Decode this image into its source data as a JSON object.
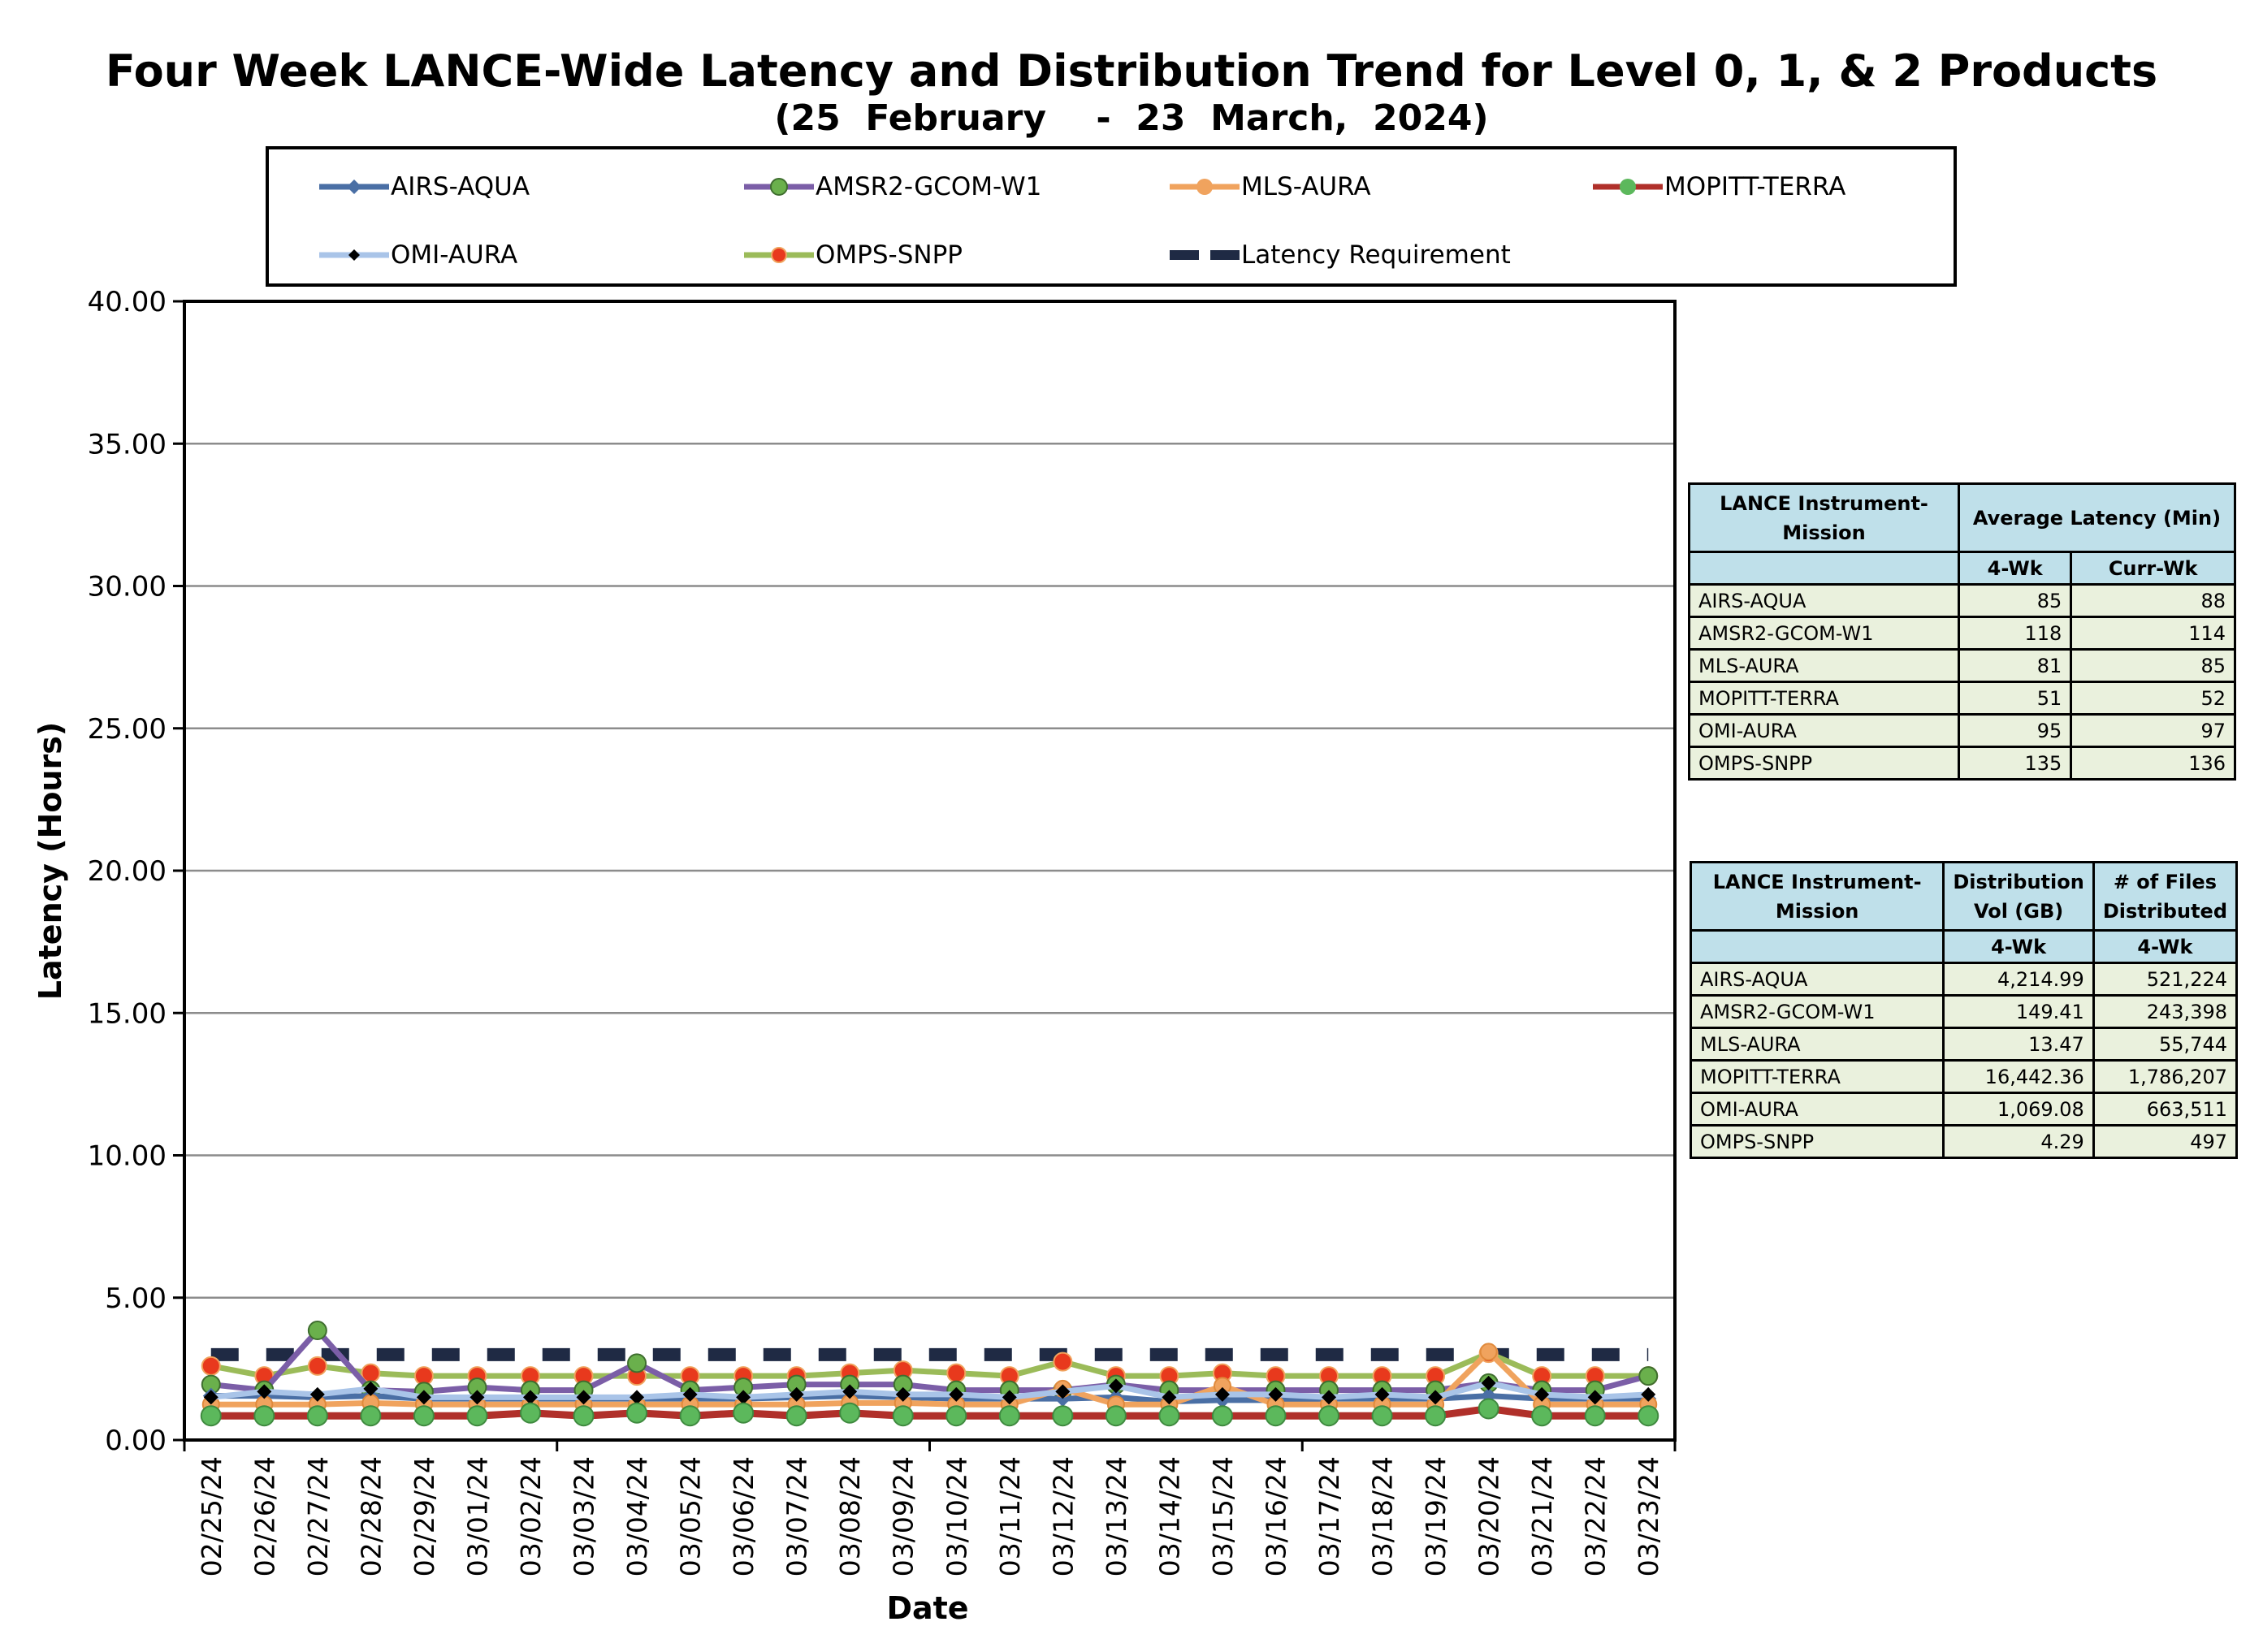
{
  "title": "Four Week LANCE-Wide Latency and Distribution Trend for Level 0, 1, & 2 Products",
  "subtitle": "(25  February    -  23  March,  2024)",
  "legend": [
    {
      "name": "AIRS-AQUA",
      "color": "#4a6fa5",
      "marker": "diamond"
    },
    {
      "name": "AMSR2-GCOM-W1",
      "color": "#7b5ea7",
      "marker": "circle-green"
    },
    {
      "name": "MLS-AURA",
      "color": "#f0a35e",
      "marker": "circle-orange"
    },
    {
      "name": "MOPITT-TERRA",
      "color": "#b0302a",
      "marker": "circle-green"
    },
    {
      "name": "OMI-AURA",
      "color": "#a9c4e8",
      "marker": "diamond-black"
    },
    {
      "name": "OMPS-SNPP",
      "color": "#9bbb59",
      "marker": "circle-red"
    },
    {
      "name": "Latency Requirement",
      "color": "#1f2a44",
      "marker": "dash"
    }
  ],
  "chart_data": {
    "type": "line",
    "xlabel": "Date",
    "ylabel": "Latency (Hours)",
    "ylim": [
      0,
      40
    ],
    "yticks": [
      "0.00",
      "5.00",
      "10.00",
      "15.00",
      "20.00",
      "25.00",
      "30.00",
      "35.00",
      "40.00"
    ],
    "grid": true,
    "x": [
      "02/25/24",
      "02/26/24",
      "02/27/24",
      "02/28/24",
      "02/29/24",
      "03/01/24",
      "03/02/24",
      "03/03/24",
      "03/04/24",
      "03/05/24",
      "03/06/24",
      "03/07/24",
      "03/08/24",
      "03/09/24",
      "03/10/24",
      "03/11/24",
      "03/12/24",
      "03/13/24",
      "03/14/24",
      "03/15/24",
      "03/16/24",
      "03/17/24",
      "03/18/24",
      "03/19/24",
      "03/20/24",
      "03/21/24",
      "03/22/24",
      "03/23/24"
    ],
    "series": [
      {
        "name": "Latency Requirement",
        "values": [
          3,
          3,
          3,
          3,
          3,
          3,
          3,
          3,
          3,
          3,
          3,
          3,
          3,
          3,
          3,
          3,
          3,
          3,
          3,
          3,
          3,
          3,
          3,
          3,
          3,
          3,
          3,
          3
        ]
      },
      {
        "name": "OMPS-SNPP",
        "values": [
          2.6,
          2.25,
          2.6,
          2.35,
          2.25,
          2.25,
          2.25,
          2.25,
          2.25,
          2.25,
          2.25,
          2.25,
          2.35,
          2.45,
          2.35,
          2.25,
          2.75,
          2.25,
          2.25,
          2.35,
          2.25,
          2.25,
          2.25,
          2.25,
          3.05,
          2.25,
          2.25,
          2.25
        ]
      },
      {
        "name": "AMSR2-GCOM-W1",
        "values": [
          1.95,
          1.75,
          3.85,
          1.75,
          1.7,
          1.85,
          1.75,
          1.75,
          2.7,
          1.75,
          1.85,
          1.95,
          1.95,
          1.95,
          1.75,
          1.75,
          1.75,
          1.95,
          1.75,
          1.75,
          1.75,
          1.75,
          1.75,
          1.75,
          2.0,
          1.75,
          1.75,
          2.25
        ]
      },
      {
        "name": "AIRS-AQUA",
        "values": [
          1.55,
          1.55,
          1.5,
          1.55,
          1.45,
          1.45,
          1.45,
          1.45,
          1.45,
          1.45,
          1.45,
          1.5,
          1.55,
          1.5,
          1.45,
          1.45,
          1.45,
          1.5,
          1.35,
          1.4,
          1.4,
          1.45,
          1.45,
          1.45,
          1.55,
          1.45,
          1.45,
          1.45
        ]
      },
      {
        "name": "MLS-AURA",
        "values": [
          1.25,
          1.25,
          1.25,
          1.3,
          1.25,
          1.25,
          1.25,
          1.25,
          1.25,
          1.25,
          1.25,
          1.25,
          1.3,
          1.3,
          1.25,
          1.25,
          1.8,
          1.25,
          1.25,
          1.9,
          1.25,
          1.25,
          1.25,
          1.25,
          3.1,
          1.25,
          1.25,
          1.25
        ]
      },
      {
        "name": "OMI-AURA",
        "values": [
          1.5,
          1.7,
          1.6,
          1.8,
          1.5,
          1.5,
          1.5,
          1.5,
          1.5,
          1.6,
          1.5,
          1.6,
          1.7,
          1.6,
          1.6,
          1.5,
          1.7,
          1.9,
          1.5,
          1.6,
          1.6,
          1.5,
          1.6,
          1.5,
          2.0,
          1.6,
          1.5,
          1.6
        ]
      },
      {
        "name": "MOPITT-TERRA",
        "values": [
          0.85,
          0.85,
          0.85,
          0.85,
          0.85,
          0.85,
          0.95,
          0.85,
          0.95,
          0.85,
          0.95,
          0.85,
          0.95,
          0.85,
          0.85,
          0.85,
          0.85,
          0.85,
          0.85,
          0.85,
          0.85,
          0.85,
          0.85,
          0.85,
          1.1,
          0.85,
          0.85,
          0.85
        ]
      }
    ]
  },
  "table1": {
    "header": {
      "col1": "LANCE Instrument-Mission",
      "col23": "Average Latency (Min)",
      "sub2": "4-Wk",
      "sub3": "Curr-Wk"
    },
    "rows": [
      {
        "name": "AIRS-AQUA",
        "v1": "85",
        "v2": "88"
      },
      {
        "name": "AMSR2-GCOM-W1",
        "v1": "118",
        "v2": "114"
      },
      {
        "name": "MLS-AURA",
        "v1": "81",
        "v2": "85"
      },
      {
        "name": "MOPITT-TERRA",
        "v1": "51",
        "v2": "52"
      },
      {
        "name": "OMI-AURA",
        "v1": "95",
        "v2": "97"
      },
      {
        "name": "OMPS-SNPP",
        "v1": "135",
        "v2": "136"
      }
    ]
  },
  "table2": {
    "header": {
      "col1": "LANCE Instrument-Mission",
      "col2": "Distribution Vol (GB)",
      "col3": "# of Files Distributed",
      "sub2": "4-Wk",
      "sub3": "4-Wk"
    },
    "rows": [
      {
        "name": "AIRS-AQUA",
        "v1": "4,214.99",
        "v2": "521,224"
      },
      {
        "name": "AMSR2-GCOM-W1",
        "v1": "149.41",
        "v2": "243,398"
      },
      {
        "name": "MLS-AURA",
        "v1": "13.47",
        "v2": "55,744"
      },
      {
        "name": "MOPITT-TERRA",
        "v1": "16,442.36",
        "v2": "1,786,207"
      },
      {
        "name": "OMI-AURA",
        "v1": "1,069.08",
        "v2": "663,511"
      },
      {
        "name": "OMPS-SNPP",
        "v1": "4.29",
        "v2": "497"
      }
    ]
  }
}
